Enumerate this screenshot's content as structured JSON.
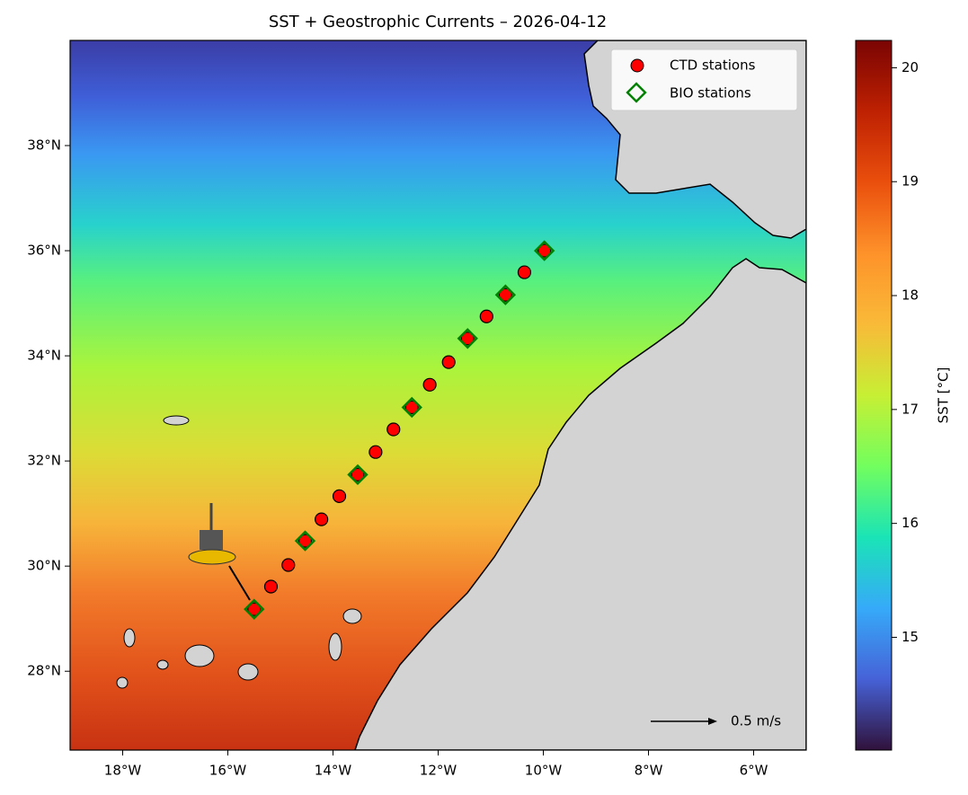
{
  "chart_data": {
    "type": "map",
    "title": "SST + Geostrophic Currents – 2026-04-12",
    "xlim": [
      -19,
      -5
    ],
    "ylim": [
      26.5,
      40
    ],
    "xticks": [
      {
        "value": -18,
        "label": "18°W"
      },
      {
        "value": -16,
        "label": "16°W"
      },
      {
        "value": -14,
        "label": "14°W"
      },
      {
        "value": -12,
        "label": "12°W"
      },
      {
        "value": -10,
        "label": "10°W"
      },
      {
        "value": -8,
        "label": "8°W"
      },
      {
        "value": -6,
        "label": "6°W"
      }
    ],
    "yticks": [
      {
        "value": 28,
        "label": "28°N"
      },
      {
        "value": 30,
        "label": "30°N"
      },
      {
        "value": 32,
        "label": "32°N"
      },
      {
        "value": 34,
        "label": "34°N"
      },
      {
        "value": 36,
        "label": "36°N"
      },
      {
        "value": 38,
        "label": "38°N"
      }
    ],
    "series": [
      {
        "name": "CTD stations",
        "color": "#ff0000",
        "marker": "circle",
        "x": [
          -9.98,
          -10.36,
          -10.72,
          -11.08,
          -11.44,
          -11.8,
          -12.16,
          -12.5,
          -12.85,
          -13.19,
          -13.53,
          -13.88,
          -14.22,
          -14.53,
          -14.85,
          -15.18,
          -15.5
        ],
        "y": [
          36.0,
          35.59,
          35.16,
          34.75,
          34.33,
          33.88,
          33.45,
          33.02,
          32.6,
          32.17,
          31.74,
          31.33,
          30.89,
          30.48,
          30.02,
          29.61,
          29.18
        ]
      },
      {
        "name": "BIO stations",
        "color": "#008000",
        "marker": "diamond",
        "x": [
          -9.98,
          -10.72,
          -11.44,
          -12.5,
          -13.53,
          -14.53,
          -15.5
        ],
        "y": [
          36.0,
          35.16,
          34.33,
          33.02,
          31.74,
          30.48,
          29.18
        ]
      }
    ],
    "legend": "upper right",
    "colorbar": {
      "label": "SST [°C]",
      "lim": [
        14.01,
        20.24
      ],
      "ticks": [
        15,
        16,
        17,
        18,
        19,
        20
      ],
      "colormap": "turbo"
    },
    "quiver_key": "0.5 m/s"
  }
}
